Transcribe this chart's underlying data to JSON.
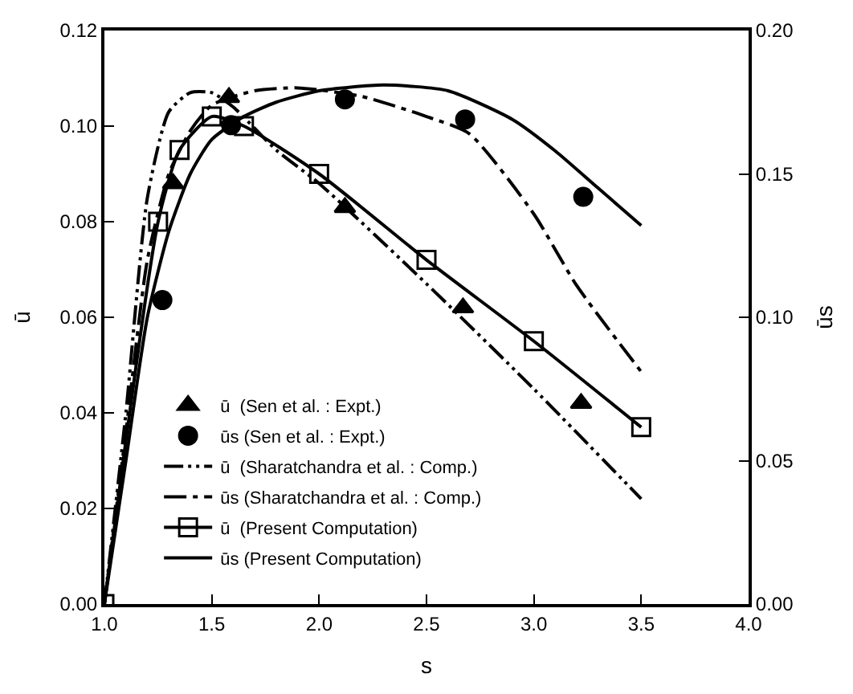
{
  "chart_data": {
    "type": "line",
    "xlabel": "s",
    "ylabel": "ū",
    "y2label": "ūs",
    "xlim": [
      1.0,
      4.0
    ],
    "xticks": [
      {
        "value": 1.0,
        "label": "1.0"
      },
      {
        "value": 1.5,
        "label": "1.5"
      },
      {
        "value": 2.0,
        "label": "2.0"
      },
      {
        "value": 2.5,
        "label": "2.5"
      },
      {
        "value": 3.0,
        "label": "3.0"
      },
      {
        "value": 3.5,
        "label": "3.5"
      },
      {
        "value": 4.0,
        "label": "4.0"
      }
    ],
    "ylim": [
      0,
      0.12
    ],
    "yticks": [
      {
        "value": 0,
        "label": "0.00"
      },
      {
        "value": 0.02,
        "label": "0.02"
      },
      {
        "value": 0.04,
        "label": "0.04"
      },
      {
        "value": 0.06,
        "label": "0.06"
      },
      {
        "value": 0.08,
        "label": "0.08"
      },
      {
        "value": 0.1,
        "label": "0.10"
      },
      {
        "value": 0.12,
        "label": "0.12"
      }
    ],
    "y2lim": [
      0,
      0.2
    ],
    "y2ticks": [
      {
        "value": 0,
        "label": "0.00"
      },
      {
        "value": 0.05,
        "label": "0.05"
      },
      {
        "value": 0.1,
        "label": "0.10"
      },
      {
        "value": 0.15,
        "label": "0.15"
      },
      {
        "value": 0.2,
        "label": "0.20"
      }
    ],
    "legend": "bottom left",
    "series": [
      {
        "name": "ū  (Sen et al. : Expt.)",
        "type": "scatter",
        "marker": "triangle",
        "color": "#000000",
        "x": [
          1.32,
          1.58,
          2.12,
          2.67,
          3.22
        ],
        "values": [
          0.088,
          0.106,
          0.083,
          0.062,
          0.042
        ]
      },
      {
        "name": "ūs (Sen et al. : Expt.)",
        "type": "scatter",
        "marker": "circle",
        "axis": "y2",
        "color": "#000000",
        "x": [
          1.27,
          1.59,
          2.12,
          2.68,
          3.23
        ],
        "values": [
          0.106,
          0.167,
          0.176,
          0.169,
          0.142
        ]
      },
      {
        "name": "ū  (Sharatchandra et al. : Comp.)",
        "marker": "none",
        "line_style": "dashdotdot",
        "color": "#000000",
        "x": [
          1.0,
          1.1,
          1.2,
          1.3,
          1.4,
          1.5,
          1.6,
          1.8,
          2.0,
          2.5,
          3.0,
          3.5
        ],
        "values": [
          0,
          0.04,
          0.085,
          0.103,
          0.107,
          0.107,
          0.104,
          0.095,
          0.088,
          0.067,
          0.045,
          0.022
        ]
      },
      {
        "name": "ūs (Sharatchandra et al. : Comp.)",
        "marker": "none",
        "line_style": "dashdot",
        "axis": "y2",
        "color": "#000000",
        "x": [
          1.0,
          1.1,
          1.2,
          1.3,
          1.4,
          1.5,
          1.7,
          1.9,
          2.2,
          2.5,
          2.7,
          3.0,
          3.2,
          3.5
        ],
        "values": [
          0,
          0.06,
          0.12,
          0.15,
          0.165,
          0.174,
          0.179,
          0.18,
          0.177,
          0.17,
          0.164,
          0.136,
          0.111,
          0.081
        ]
      },
      {
        "name": "ū  (Present Computation)",
        "marker": "square",
        "line_style": "solid",
        "color": "#000000",
        "x": [
          1.0,
          1.25,
          1.35,
          1.5,
          1.65,
          2.0,
          2.5,
          3.0,
          3.5
        ],
        "values": [
          0,
          0.08,
          0.095,
          0.102,
          0.1,
          0.09,
          0.072,
          0.055,
          0.037
        ]
      },
      {
        "name": "ūs (Present Computation)",
        "marker": "none",
        "line_style": "solid",
        "axis": "y2",
        "color": "#000000",
        "x": [
          1.0,
          1.1,
          1.2,
          1.3,
          1.4,
          1.5,
          1.65,
          1.8,
          2.0,
          2.3,
          2.6,
          2.9,
          3.1,
          3.3,
          3.5
        ],
        "values": [
          0,
          0.05,
          0.1,
          0.13,
          0.15,
          0.162,
          0.17,
          0.175,
          0.179,
          0.181,
          0.179,
          0.169,
          0.158,
          0.145,
          0.132
        ]
      }
    ]
  }
}
